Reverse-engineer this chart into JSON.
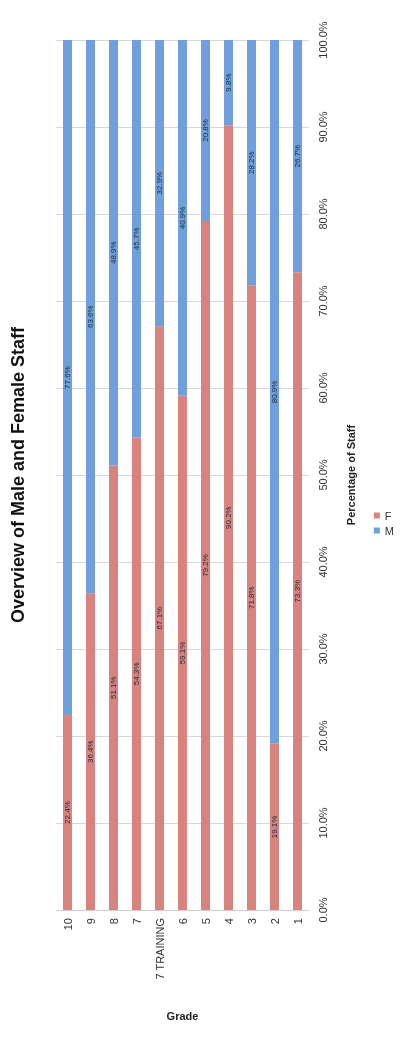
{
  "chart_data": {
    "type": "bar",
    "stacked": true,
    "title": "Overview of Male and Female Staff",
    "xlabel": "Grade",
    "ylabel": "Percentage of Staff",
    "categories": [
      "10",
      "9",
      "8",
      "7",
      "7 TRAINING",
      "6",
      "5",
      "4",
      "3",
      "2",
      "1"
    ],
    "series": [
      {
        "name": "F",
        "color": "#d9837f",
        "values": [
          22.4,
          36.4,
          51.1,
          54.3,
          67.1,
          59.1,
          79.2,
          90.2,
          71.8,
          19.1,
          73.3
        ],
        "value_labels": [
          "22.4%",
          "36.4%",
          "51.1%",
          "54.3%",
          "67.1%",
          "59.1%",
          "79.2%",
          "90.2%",
          "71.8%",
          "19.1%",
          "73.3%"
        ]
      },
      {
        "name": "M",
        "color": "#6fa0dc",
        "values": [
          77.6,
          63.6,
          48.9,
          45.7,
          32.9,
          40.9,
          20.8,
          9.8,
          28.2,
          80.9,
          26.7
        ],
        "value_labels": [
          "77.6%",
          "63.6%",
          "48.9%",
          "45.7%",
          "32.9%",
          "40.9%",
          "20.8%",
          "9.8%",
          "28.2%",
          "80.9%",
          "26.7%"
        ]
      }
    ],
    "ylim": [
      0,
      100
    ],
    "yticks": [
      {
        "value": 0,
        "label": "0.0%"
      },
      {
        "value": 10,
        "label": "10.0%"
      },
      {
        "value": 20,
        "label": "20.0%"
      },
      {
        "value": 30,
        "label": "30.0%"
      },
      {
        "value": 40,
        "label": "40.0%"
      },
      {
        "value": 50,
        "label": "50.0%"
      },
      {
        "value": 60,
        "label": "60.0%"
      },
      {
        "value": 70,
        "label": "70.0%"
      },
      {
        "value": 80,
        "label": "80.0%"
      },
      {
        "value": 90,
        "label": "90.0%"
      },
      {
        "value": 100,
        "label": "100.0%"
      }
    ],
    "grid": "y",
    "legend": "right"
  }
}
